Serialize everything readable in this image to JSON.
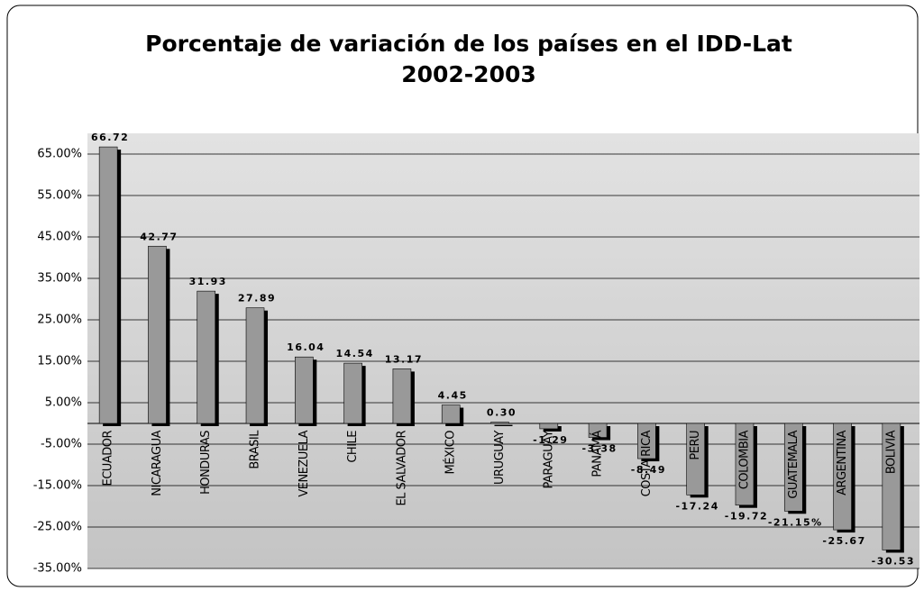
{
  "chart_data": {
    "type": "bar",
    "title": "Porcentaje de variación de los países en el IDD-Lat",
    "subtitle": "2002-2003",
    "categories": [
      "ECUADOR",
      "NICARAGUA",
      "HONDURAS",
      "BRASIL",
      "VENEZUELA",
      "CHILE",
      "EL SALVADOR",
      "MÉXICO",
      "URUGUAY",
      "PARAGUAY",
      "PANAMÁ",
      "COSTA RICA",
      "PERU",
      "COLOMBIA",
      "GUATEMALA",
      "ARGENTINA",
      "BOLIVIA"
    ],
    "values": [
      66.72,
      42.77,
      31.93,
      27.89,
      16.04,
      14.54,
      13.17,
      4.45,
      0.3,
      -1.29,
      -3.38,
      -8.49,
      -17.24,
      -19.72,
      -21.15,
      -25.67,
      -30.53
    ],
    "value_labels": [
      "66.72",
      "42.77",
      "31.93",
      "27.89",
      "16.04",
      "14.54",
      "13.17",
      "4.45",
      "0.30",
      "-1.29",
      "-3.38",
      "-8.49",
      "-17.24",
      "-19.72",
      "-21.15%",
      "-25.67",
      "-30.53"
    ],
    "color": "#999999",
    "ylim": [
      -35,
      70
    ],
    "yticks": [
      {
        "value": -35,
        "label": "-35.00%"
      },
      {
        "value": -25,
        "label": "-25.00%"
      },
      {
        "value": -15,
        "label": "-15.00%"
      },
      {
        "value": -5,
        "label": "-5.00%"
      },
      {
        "value": 5,
        "label": "5.00%"
      },
      {
        "value": 15,
        "label": "15.00%"
      },
      {
        "value": 25,
        "label": "25.00%"
      },
      {
        "value": 35,
        "label": "35.00%"
      },
      {
        "value": 45,
        "label": "45.00%"
      },
      {
        "value": 55,
        "label": "55.00%"
      },
      {
        "value": 65,
        "label": "65.00%"
      }
    ],
    "grid": true
  }
}
